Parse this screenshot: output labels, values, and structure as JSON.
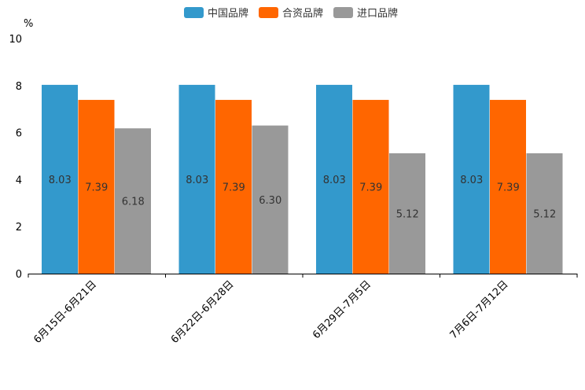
{
  "chart_data": {
    "type": "bar",
    "title": "",
    "xlabel": "",
    "ylabel": "%",
    "ylim": [
      0,
      10
    ],
    "yticks": [
      0,
      2,
      4,
      6,
      8,
      10
    ],
    "categories": [
      "6月15日-6月21日",
      "6月22日-6月28日",
      "6月29日-7月5日",
      "7月6日-7月12日"
    ],
    "series": [
      {
        "name": "中国品牌",
        "color": "#3399cc",
        "values": [
          8.03,
          8.03,
          8.03,
          8.03
        ]
      },
      {
        "name": "合资品牌",
        "color": "#ff6600",
        "values": [
          7.39,
          7.39,
          7.39,
          7.39
        ]
      },
      {
        "name": "进口品牌",
        "color": "#999999",
        "values": [
          6.18,
          6.3,
          5.12,
          5.12
        ]
      }
    ],
    "legend_position": "top-center",
    "grid": false
  }
}
